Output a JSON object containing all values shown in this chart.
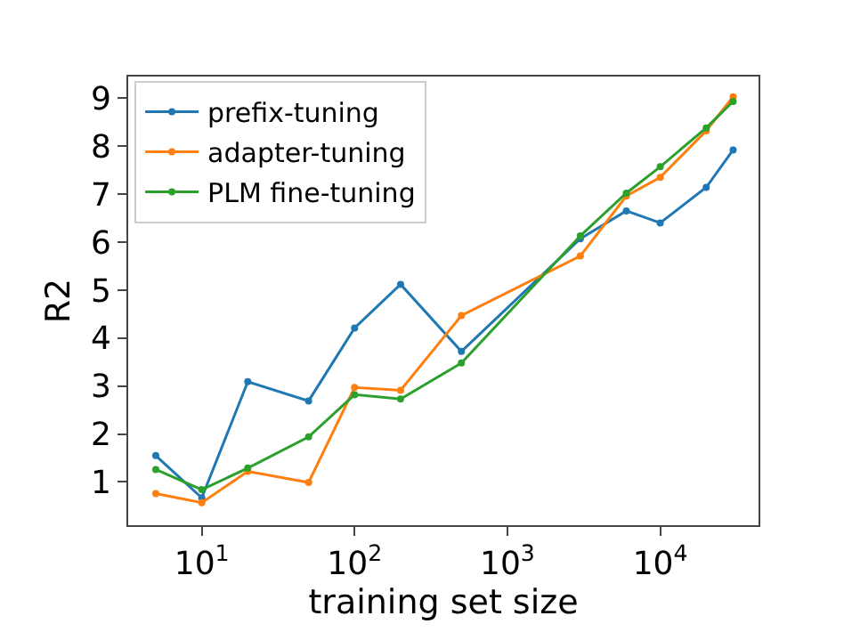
{
  "chart_data": {
    "type": "line",
    "xlabel": "training set size",
    "ylabel": "R2",
    "log": "x",
    "legend": "top left",
    "marker": "circle",
    "line_style": "solid",
    "x": [
      5,
      10,
      20,
      50,
      100,
      200,
      500,
      3000,
      6000,
      10000,
      20000,
      30000
    ],
    "xlim": [
      3.3,
      44000
    ],
    "xticks": [
      {
        "value": 10,
        "label": "10$^{1}$"
      },
      {
        "value": 100,
        "label": "10$^{2}$"
      },
      {
        "value": 1000,
        "label": "10$^{3}$"
      },
      {
        "value": 10000,
        "label": "10$^{4}$"
      }
    ],
    "ylim": [
      0.1,
      9.45
    ],
    "yticks": [
      1,
      2,
      3,
      4,
      5,
      6,
      7,
      8,
      9
    ],
    "series": [
      {
        "name": "prefix-tuning",
        "color": "#1f77b4",
        "values": [
          1.55,
          0.67,
          3.09,
          2.69,
          4.21,
          5.12,
          3.72,
          6.07,
          6.65,
          6.4,
          7.14,
          7.92
        ]
      },
      {
        "name": "adapter-tuning",
        "color": "#ff7f0e",
        "values": [
          0.76,
          0.57,
          1.22,
          0.99,
          2.97,
          2.91,
          4.47,
          5.71,
          6.96,
          7.35,
          8.32,
          9.03
        ]
      },
      {
        "name": "PLM fine-tuning",
        "color": "#2ca02c",
        "values": [
          1.26,
          0.84,
          1.29,
          1.94,
          2.82,
          2.73,
          3.48,
          6.13,
          7.02,
          7.57,
          8.38,
          8.93
        ]
      }
    ]
  }
}
